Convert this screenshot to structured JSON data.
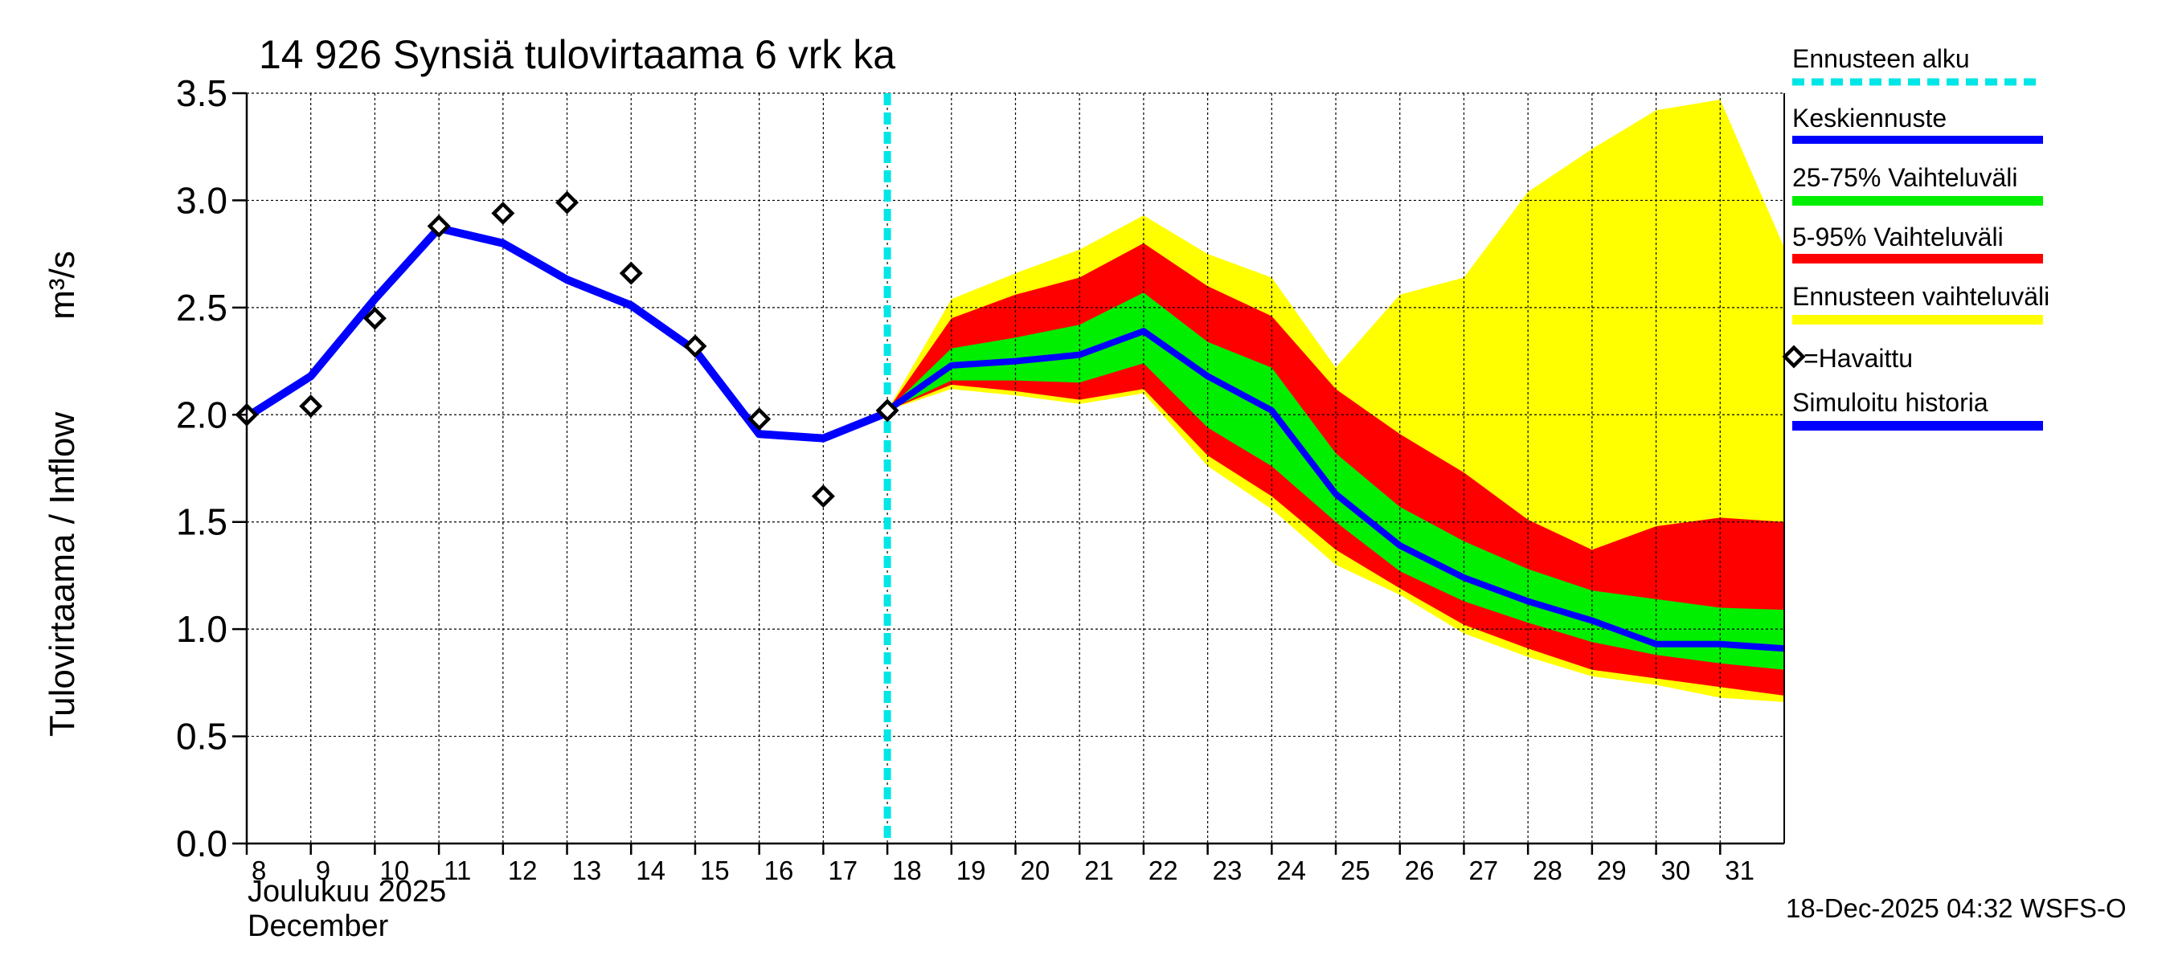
{
  "chart_data": {
    "type": "area",
    "title": "14 926 Synsiä tulovirtaama 6 vrk ka",
    "ylabel": "Tulovirtaama / Inflow",
    "yunit": "m³/s",
    "ylim": [
      0,
      3.5
    ],
    "yticks": [
      0.0,
      0.5,
      1.0,
      1.5,
      2.0,
      2.5,
      3.0,
      3.5
    ],
    "ytick_labels": [
      "0.0",
      "0.5",
      "1.0",
      "1.5",
      "2.0",
      "2.5",
      "3.0",
      "3.5"
    ],
    "xlim": [
      8,
      32
    ],
    "xticks": [
      8,
      9,
      10,
      11,
      12,
      13,
      14,
      15,
      16,
      17,
      18,
      19,
      20,
      21,
      22,
      23,
      24,
      25,
      26,
      27,
      28,
      29,
      30,
      31
    ],
    "xtick_labels": [
      "8",
      "9",
      "10",
      "11",
      "12",
      "13",
      "14",
      "15",
      "16",
      "17",
      "18",
      "19",
      "20",
      "21",
      "22",
      "23",
      "24",
      "25",
      "26",
      "27",
      "28",
      "29",
      "30",
      "31"
    ],
    "month_label_fi": "Joulukuu  2025",
    "month_label_en": "December",
    "footer": "18-Dec-2025 04:32 WSFS-O",
    "forecast_start": 18,
    "legend": {
      "forecast_start": "Ennusteen alku",
      "median": "Keskiennuste",
      "range_25_75": "25-75% Vaihteluväli",
      "range_5_95": "5-95% Vaihteluväli",
      "range_full": "Ennusteen vaihteluväli",
      "observed": "=Havaittu",
      "simulated": "Simuloitu historia"
    },
    "colors": {
      "forecast_start": "#00e5e5",
      "median": "#0000ff",
      "range_25_75": "#00ee00",
      "range_5_95": "#ff0000",
      "range_full": "#ffff00",
      "simulated": "#0000ff",
      "observed": "#000000"
    },
    "simulated_history": {
      "x": [
        8,
        9,
        10,
        11,
        12,
        13,
        14,
        15,
        16,
        17,
        18
      ],
      "y": [
        1.99,
        2.18,
        2.54,
        2.87,
        2.8,
        2.63,
        2.51,
        2.3,
        1.91,
        1.89,
        2.01
      ]
    },
    "observed": {
      "x": [
        8,
        9,
        10,
        11,
        12,
        13,
        14,
        15,
        16,
        17,
        18
      ],
      "y": [
        2.0,
        2.04,
        2.45,
        2.88,
        2.94,
        2.99,
        2.66,
        2.32,
        1.98,
        1.62,
        2.02
      ]
    },
    "forecast": {
      "x": [
        18,
        19,
        20,
        21,
        22,
        23,
        24,
        25,
        26,
        27,
        28,
        29,
        30,
        31,
        32
      ],
      "full_max": [
        2.02,
        2.54,
        2.66,
        2.77,
        2.93,
        2.75,
        2.64,
        2.22,
        2.56,
        2.64,
        3.04,
        3.24,
        3.42,
        3.47,
        2.78
      ],
      "p95": [
        2.02,
        2.45,
        2.56,
        2.64,
        2.8,
        2.6,
        2.46,
        2.12,
        1.91,
        1.73,
        1.51,
        1.37,
        1.48,
        1.52,
        1.5
      ],
      "p75": [
        2.02,
        2.31,
        2.36,
        2.42,
        2.57,
        2.34,
        2.22,
        1.82,
        1.57,
        1.41,
        1.28,
        1.18,
        1.14,
        1.1,
        1.09
      ],
      "median": [
        2.02,
        2.23,
        2.25,
        2.28,
        2.39,
        2.18,
        2.02,
        1.63,
        1.39,
        1.24,
        1.13,
        1.04,
        0.93,
        0.93,
        0.91
      ],
      "p25": [
        2.02,
        2.16,
        2.16,
        2.15,
        2.24,
        1.94,
        1.76,
        1.5,
        1.27,
        1.13,
        1.03,
        0.94,
        0.88,
        0.84,
        0.81
      ],
      "p5": [
        2.02,
        2.14,
        2.11,
        2.07,
        2.12,
        1.81,
        1.62,
        1.37,
        1.19,
        1.02,
        0.91,
        0.81,
        0.77,
        0.73,
        0.69
      ],
      "full_min": [
        2.02,
        2.12,
        2.09,
        2.05,
        2.1,
        1.76,
        1.56,
        1.3,
        1.16,
        0.98,
        0.87,
        0.78,
        0.74,
        0.68,
        0.66
      ]
    }
  }
}
